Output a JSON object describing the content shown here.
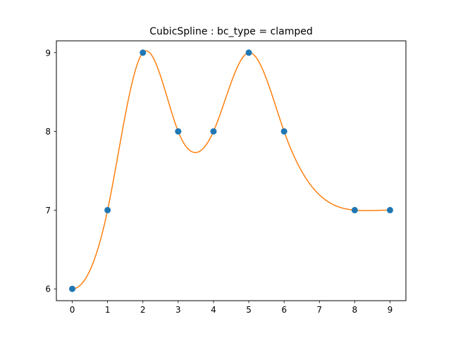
{
  "chart_data": {
    "type": "line",
    "title": "CubicSpline : bc_type = clamped",
    "xlabel": "",
    "ylabel": "",
    "xlim": [
      -0.45,
      9.45
    ],
    "ylim": [
      5.85,
      9.15
    ],
    "xticks": [
      0,
      1,
      2,
      3,
      4,
      5,
      6,
      7,
      8,
      9
    ],
    "yticks": [
      6,
      7,
      8,
      9
    ],
    "grid": false,
    "legend": "none",
    "series": [
      {
        "kind": "scatter",
        "color": "#1f77b4",
        "points": [
          [
            0,
            6
          ],
          [
            1,
            7
          ],
          [
            2,
            9
          ],
          [
            3,
            8
          ],
          [
            4,
            8
          ],
          [
            5,
            9
          ],
          [
            6,
            8
          ],
          [
            8,
            7
          ],
          [
            9,
            7
          ]
        ]
      },
      {
        "kind": "line",
        "color": "#ff7f0e",
        "interpolation": "cubic-spline-clamped"
      }
    ]
  }
}
